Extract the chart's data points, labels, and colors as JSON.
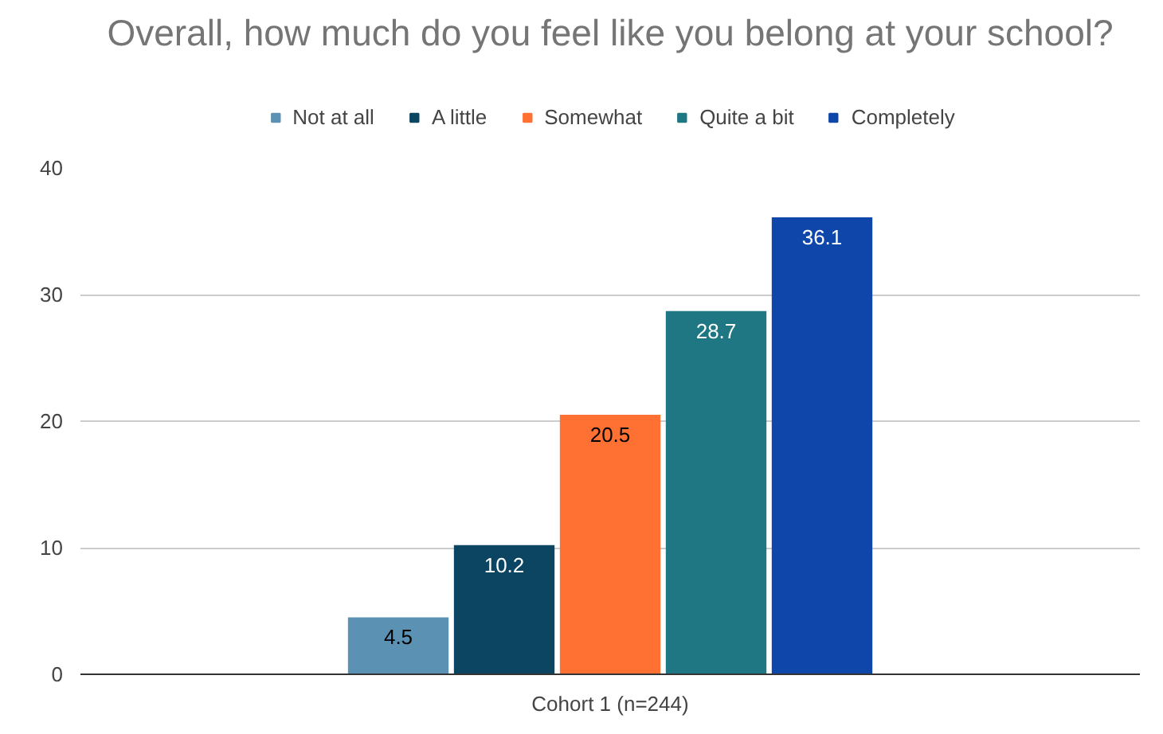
{
  "chart_data": {
    "type": "bar",
    "title": "Overall, how much do you feel like you belong at your school?",
    "categories": [
      "Cohort 1 (n=244)"
    ],
    "series": [
      {
        "name": "Not at all",
        "color": "#5b91b2",
        "values": [
          4.5
        ]
      },
      {
        "name": "A little",
        "color": "#0b4562",
        "values": [
          10.2
        ]
      },
      {
        "name": "Somewhat",
        "color": "#ff7133",
        "values": [
          20.5
        ]
      },
      {
        "name": "Quite a bit",
        "color": "#1f7783",
        "values": [
          28.7
        ]
      },
      {
        "name": "Completely",
        "color": "#0f46a9",
        "values": [
          36.1
        ]
      }
    ],
    "ylim": [
      0,
      40
    ],
    "yticks": [
      0,
      10,
      20,
      30,
      40
    ],
    "grid": "y",
    "legend": "top",
    "data_labels": true
  }
}
